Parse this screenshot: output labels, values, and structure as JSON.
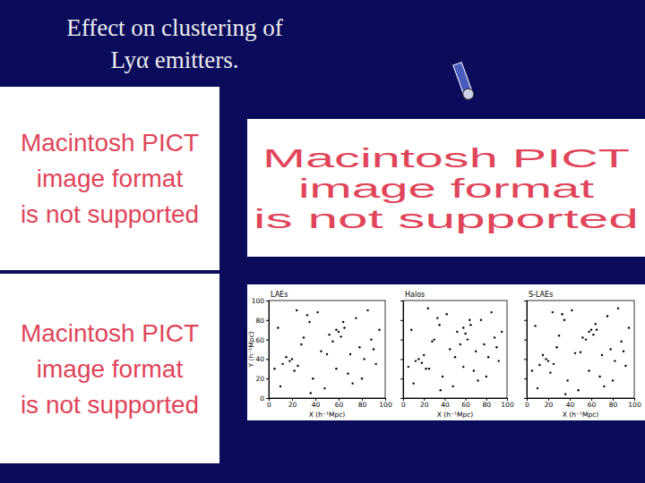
{
  "slide": {
    "title": [
      "Effect on clustering of",
      "Lyα emitters."
    ],
    "placeholders": [
      {
        "lines": [
          "Macintosh PICT",
          "image format",
          "is not supported"
        ]
      },
      {
        "lines": [
          "Macintosh PICT",
          "image format",
          "is not supported"
        ]
      },
      {
        "lines": [
          "Macintosh PICT",
          "image format",
          "is not supported"
        ]
      }
    ]
  },
  "chart_data": [
    {
      "type": "scatter",
      "title": "LAEs",
      "x_label": "X (h⁻¹Mpc)",
      "y_label": "Y (h⁻¹Mpc)",
      "color": "#000000",
      "marker": "dot",
      "xlim": [
        0,
        100
      ],
      "ylim": [
        0,
        100
      ],
      "xticks": [
        0,
        20,
        40,
        60,
        80,
        100
      ],
      "yticks": [
        0,
        20,
        40,
        60,
        80,
        100
      ],
      "x": [
        5,
        8,
        12,
        15,
        18,
        20,
        22,
        25,
        28,
        30,
        33,
        35,
        38,
        42,
        45,
        48,
        52,
        55,
        58,
        60,
        62,
        65,
        68,
        70,
        72,
        75,
        78,
        82,
        85,
        88,
        92,
        95,
        10,
        24,
        36,
        58,
        64,
        80,
        90,
        50
      ],
      "values": [
        30,
        72,
        35,
        42,
        38,
        40,
        28,
        33,
        55,
        62,
        85,
        78,
        20,
        88,
        48,
        10,
        65,
        58,
        70,
        68,
        63,
        72,
        25,
        45,
        15,
        82,
        52,
        40,
        90,
        60,
        35,
        70,
        12,
        90,
        5,
        30,
        78,
        20,
        50,
        45
      ]
    },
    {
      "type": "scatter",
      "title": "Halos",
      "x_label": "X (h⁻¹Mpc)",
      "color": "#000000",
      "marker": "dot",
      "tick_labels": "x",
      "xlim": [
        0,
        100
      ],
      "ylim": [
        0,
        100
      ],
      "xticks": [
        0,
        20,
        40,
        60,
        80,
        100
      ],
      "yticks": [
        0,
        20,
        40,
        60,
        80,
        100
      ],
      "x": [
        5,
        8,
        12,
        15,
        18,
        20,
        22,
        25,
        28,
        30,
        33,
        35,
        38,
        42,
        45,
        48,
        52,
        55,
        58,
        60,
        62,
        65,
        68,
        70,
        72,
        75,
        78,
        82,
        85,
        88,
        92,
        95,
        10,
        24,
        36,
        58,
        64,
        80,
        90,
        50
      ],
      "values": [
        32,
        70,
        38,
        40,
        36,
        44,
        30,
        30,
        58,
        60,
        82,
        75,
        22,
        86,
        50,
        12,
        68,
        55,
        72,
        66,
        60,
        75,
        28,
        48,
        18,
        80,
        55,
        42,
        88,
        62,
        38,
        68,
        15,
        92,
        8,
        32,
        80,
        22,
        52,
        42
      ]
    },
    {
      "type": "scatter",
      "title": "S-LAEs",
      "x_label": "X (h⁻¹Mpc)",
      "color": "#000000",
      "marker": "dot",
      "tick_labels": "x",
      "xlim": [
        0,
        100
      ],
      "ylim": [
        0,
        100
      ],
      "xticks": [
        0,
        20,
        40,
        60,
        80,
        100
      ],
      "yticks": [
        0,
        20,
        40,
        60,
        80,
        100
      ],
      "x": [
        5,
        8,
        12,
        15,
        18,
        20,
        22,
        25,
        28,
        30,
        33,
        35,
        38,
        42,
        45,
        48,
        52,
        55,
        58,
        60,
        62,
        65,
        68,
        70,
        72,
        75,
        78,
        82,
        85,
        88,
        92,
        95,
        10,
        24,
        36,
        58,
        64,
        80,
        90,
        50
      ],
      "values": [
        28,
        74,
        34,
        44,
        40,
        38,
        26,
        35,
        52,
        64,
        86,
        80,
        18,
        90,
        46,
        8,
        62,
        60,
        68,
        70,
        65,
        70,
        22,
        44,
        12,
        84,
        50,
        38,
        92,
        58,
        33,
        72,
        10,
        88,
        4,
        28,
        76,
        18,
        48,
        47
      ]
    }
  ]
}
